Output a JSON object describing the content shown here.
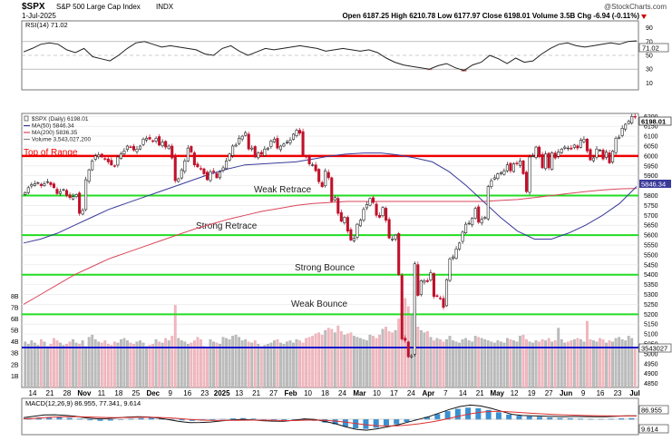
{
  "header": {
    "symbol": "$SPX",
    "name": "S&P 500 Large Cap Index",
    "exchange": "INDX",
    "date": "1-Jul-2025",
    "watermark": "@StockCharts.com",
    "quote": "Open 6187.25  High 6210.78  Low 6177.97  Close 6198.01  Volume 3.5B  Chg -6.94 (-0.11%)"
  },
  "rsi": {
    "label": "RSI(14) 71.02",
    "value_tag": "71.02",
    "ticks": [
      "90",
      "70",
      "50",
      "30",
      "10"
    ],
    "levels": [
      70,
      50,
      30
    ]
  },
  "price": {
    "legend": [
      {
        "text": "$SPX (Daily) 6198.01",
        "color": "#222222"
      },
      {
        "text": "MA(50) 5846.34",
        "color": "#3a3a9a"
      },
      {
        "text": "MA(200) 5836.35",
        "color": "#d9475a"
      },
      {
        "text": "Volume 3,543,027,200",
        "color": "#888888"
      }
    ],
    "ticks": [
      "6200",
      "6150",
      "6100",
      "6050",
      "6000",
      "5950",
      "5900",
      "5850",
      "5800",
      "5750",
      "5700",
      "5650",
      "5600",
      "5550",
      "5500",
      "5450",
      "5400",
      "5350",
      "5300",
      "5250",
      "5200",
      "5150",
      "5100",
      "5050",
      "5000",
      "4950",
      "4900",
      "4850"
    ],
    "last_tag": "6198.01",
    "ma50_tag": "5846.34",
    "volume_tag": "3543027",
    "volume_ticks": [
      "8B",
      "7B",
      "6B",
      "5B",
      "4B",
      "3B",
      "2B",
      "1B"
    ],
    "hlines": [
      {
        "label": "Top of Range",
        "value": 6000,
        "color": "#ee0000"
      },
      {
        "label": "Weak Retrace",
        "value": 5800,
        "color": "#22dd22"
      },
      {
        "label": "Strong Retrace",
        "value": 5600,
        "color": "#22dd22"
      },
      {
        "label": "Strong Bounce",
        "value": 5400,
        "color": "#22dd22"
      },
      {
        "label": "Weak Bounce",
        "value": 5200,
        "color": "#22dd22"
      }
    ],
    "volume_line": {
      "value": 3.5,
      "color": "#1010cc"
    }
  },
  "xaxis": [
    "14",
    "21",
    "28",
    "Nov",
    "11",
    "18",
    "25",
    "Dec",
    "9",
    "16",
    "23",
    "2025",
    "13",
    "21",
    "27",
    "Feb",
    "10",
    "18",
    "24",
    "Mar",
    "10",
    "17",
    "24",
    "Apr",
    "7",
    "14",
    "21",
    "May",
    "12",
    "19",
    "27",
    "Jun",
    "9",
    "16",
    "23",
    "Jul"
  ],
  "macd": {
    "label": "MACD(12,26,9) 86.955, 77.341, 9.614",
    "tags": [
      "86.955",
      "9.614"
    ]
  },
  "chart_data": {
    "type": "candlestick",
    "x_range": [
      "2024-10-11",
      "2025-07-01"
    ],
    "ylim": [
      4830,
      6215
    ],
    "closes": [
      5815,
      5840,
      5855,
      5860,
      5865,
      5850,
      5860,
      5870,
      5855,
      5840,
      5810,
      5820,
      5830,
      5800,
      5790,
      5795,
      5805,
      5710,
      5725,
      5880,
      5930,
      5975,
      6000,
      6005,
      5995,
      5985,
      5970,
      5955,
      5950,
      5995,
      6010,
      6025,
      6050,
      6045,
      6030,
      6035,
      6050,
      6085,
      6090,
      6085,
      6075,
      6090,
      6055,
      6070,
      6045,
      6050,
      5990,
      5875,
      5885,
      5930,
      5975,
      6040,
      6020,
      5955,
      5945,
      5935,
      5910,
      5880,
      5920,
      5920,
      5890,
      5920,
      5940,
      5975,
      6010,
      6050,
      6055,
      6090,
      6100,
      6118,
      6035,
      6040,
      5995,
      6015,
      6010,
      6035,
      6040,
      6075,
      6085,
      6040,
      6050,
      6060,
      6070,
      6080,
      6110,
      6130,
      6115,
      6005,
      5995,
      5960,
      5955,
      5925,
      5870,
      5845,
      5925,
      5890,
      5770,
      5790,
      5710,
      5670,
      5690,
      5620,
      5575,
      5585,
      5655,
      5675,
      5730,
      5755,
      5785,
      5765,
      5700,
      5690,
      5740,
      5675,
      5585,
      5580,
      5600,
      5400,
      5075,
      5068,
      4985,
      4990,
      5455,
      5295,
      5370,
      5370,
      5365,
      5410,
      5290,
      5290,
      5280,
      5235,
      5375,
      5480,
      5490,
      5530,
      5560,
      5615,
      5655,
      5660,
      5685,
      5735,
      5665,
      5680,
      5690,
      5845,
      5875,
      5890,
      5910,
      5915,
      5925,
      5955,
      5925,
      5960,
      5960,
      5975,
      5910,
      5820,
      5995,
      6000,
      6045,
      6000,
      5940,
      6010,
      5940,
      6015,
      5990,
      6020,
      6035,
      6045,
      6040,
      6035,
      6055,
      6040,
      6080,
      6085,
      6025,
      5980,
      5990,
      6035,
      6030,
      5985,
      6020,
      5965,
      6025,
      6090,
      6095,
      6140,
      6160,
      6175,
      6200,
      6198
    ],
    "ma50": [
      5560,
      5580,
      5610,
      5650,
      5690,
      5730,
      5760,
      5790,
      5820,
      5850,
      5880,
      5910,
      5935,
      5955,
      5960,
      5965,
      5970,
      5985,
      6000,
      6010,
      6015,
      6015,
      6005,
      5990,
      5970,
      5920,
      5850,
      5770,
      5690,
      5620,
      5580,
      5580,
      5610,
      5650,
      5700,
      5760,
      5846
    ],
    "ma200": [
      5250,
      5300,
      5350,
      5400,
      5440,
      5480,
      5510,
      5540,
      5570,
      5600,
      5630,
      5655,
      5680,
      5700,
      5720,
      5735,
      5750,
      5760,
      5765,
      5770,
      5770,
      5770,
      5770,
      5770,
      5770,
      5770,
      5770,
      5770,
      5775,
      5780,
      5790,
      5800,
      5810,
      5820,
      5828,
      5834,
      5836
    ],
    "volume_b": [
      4.0,
      3.8,
      4.1,
      3.9,
      3.7,
      4.2,
      4.0,
      3.6,
      3.8,
      4.3,
      4.1,
      3.9,
      3.7,
      3.8,
      4.0,
      4.2,
      3.9,
      3.8,
      4.1,
      3.6,
      4.4,
      4.6,
      4.2,
      4.0,
      3.9,
      4.1,
      3.8,
      3.7,
      4.0,
      3.9,
      4.2,
      4.3,
      4.1,
      3.9,
      3.8,
      4.0,
      4.1,
      3.9,
      3.6,
      3.7,
      3.8,
      4.2,
      4.0,
      3.9,
      4.3,
      4.1,
      4.5,
      7.2,
      4.3,
      4.1,
      4.0,
      3.8,
      3.9,
      4.1,
      4.4,
      4.2,
      3.6,
      3.5,
      4.2,
      4.0,
      3.9,
      3.8,
      4.4,
      4.3,
      4.2,
      4.5,
      4.6,
      4.4,
      4.1,
      4.2,
      4.0,
      3.9,
      4.1,
      3.8,
      3.6,
      3.7,
      3.8,
      3.9,
      4.1,
      4.2,
      3.9,
      3.8,
      4.0,
      4.1,
      3.9,
      4.2,
      4.1,
      3.9,
      4.3,
      4.4,
      4.5,
      4.7,
      4.8,
      4.6,
      5.0,
      5.2,
      5.1,
      4.8,
      5.4,
      4.9,
      4.6,
      4.7,
      4.8,
      4.5,
      4.4,
      4.3,
      4.2,
      4.1,
      4.6,
      4.5,
      4.3,
      4.6,
      5.1,
      5.3,
      4.9,
      4.8,
      5.0,
      6.0,
      7.3,
      7.8,
      7.1,
      6.4,
      6.8,
      5.3,
      5.0,
      4.8,
      4.9,
      4.4,
      4.1,
      4.3,
      4.2,
      4.0,
      4.2,
      4.5,
      4.1,
      4.0,
      3.9,
      4.2,
      4.3,
      4.1,
      4.0,
      4.5,
      4.4,
      4.3,
      4.2,
      4.1,
      4.0,
      3.9,
      4.1,
      4.0,
      3.9,
      4.3,
      4.2,
      4.1,
      4.0,
      4.5,
      4.6,
      4.2,
      4.0,
      3.9,
      4.1,
      4.0,
      4.2,
      4.1,
      4.3,
      4.0,
      4.1,
      5.2,
      4.2,
      3.9,
      4.0,
      4.1,
      4.2,
      4.3,
      4.2,
      4.0,
      5.8,
      4.2,
      4.1,
      4.0,
      4.3,
      4.2,
      3.9,
      4.1,
      4.0,
      4.3,
      4.4,
      4.2,
      4.1,
      4.5,
      4.3,
      3.5
    ],
    "rsi": [
      55,
      60,
      66,
      68,
      66,
      58,
      54,
      60,
      48,
      45,
      42,
      50,
      60,
      68,
      70,
      66,
      62,
      64,
      62,
      60,
      58,
      52,
      50,
      60,
      64,
      56,
      50,
      55,
      60,
      58,
      60,
      62,
      64,
      62,
      60,
      56,
      58,
      60,
      58,
      56,
      58,
      54,
      46,
      40,
      36,
      34,
      32,
      30,
      35,
      38,
      32,
      28,
      36,
      40,
      50,
      45,
      38,
      46,
      40,
      42,
      52,
      60,
      66,
      68,
      64,
      62,
      64,
      66,
      68,
      66,
      70,
      71
    ],
    "macd_hist": [
      10,
      15,
      20,
      18,
      12,
      5,
      -5,
      -10,
      -8,
      -2,
      5,
      10,
      12,
      8,
      2,
      -6,
      -10,
      -8,
      -4,
      3,
      8,
      10,
      6,
      -2,
      -8,
      -12,
      -10,
      -4,
      -10,
      -25,
      -40,
      -60,
      -75,
      -80,
      -70,
      -55,
      -40,
      -20,
      0,
      20,
      45,
      70,
      90,
      100,
      95,
      80,
      60,
      40,
      30,
      25,
      20,
      15,
      10,
      8,
      5,
      3,
      2,
      4,
      8,
      10
    ]
  }
}
